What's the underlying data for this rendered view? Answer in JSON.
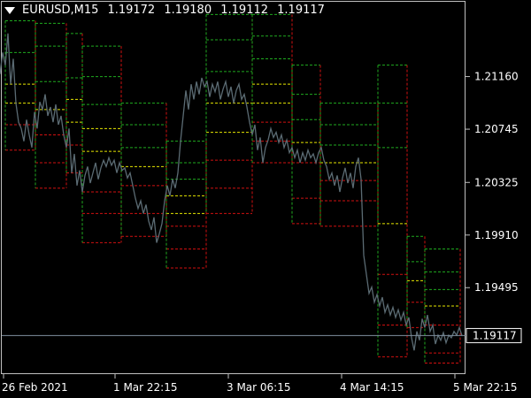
{
  "window": {
    "symbol": "EURUSD,M15",
    "ohlc": [
      "1.19172",
      "1.19180",
      "1.19112",
      "1.19117"
    ]
  },
  "colors": {
    "background": "#000000",
    "price_line": "#5b6b73",
    "current_line": "#7f8f9f",
    "upper_level": "#1faa1f",
    "mid_level": "#e6e600",
    "lower_level": "#d01010",
    "axis_text": "#ffffff",
    "frame": "#c0c0c0"
  },
  "chart_data": {
    "type": "line",
    "y_tick_labels": [
      "1.21160",
      "1.20745",
      "1.20325",
      "1.19910",
      "1.19495",
      "1.19117"
    ],
    "y_ticks": [
      1.2116,
      1.20745,
      1.20325,
      1.1991,
      1.19495
    ],
    "ylim": [
      1.1882,
      1.2175
    ],
    "current_price": 1.19117,
    "current_price_label": "1.19117",
    "x_tick_labels": [
      "26 Feb 2021",
      "1 Mar 22:15",
      "3 Mar 06:15",
      "4 Mar 14:15",
      "5 Mar 22:15"
    ],
    "price_series": [
      [
        0,
        1.2118
      ],
      [
        3,
        1.2135
      ],
      [
        6,
        1.2125
      ],
      [
        9,
        1.215
      ],
      [
        12,
        1.211
      ],
      [
        15,
        1.213
      ],
      [
        18,
        1.2095
      ],
      [
        21,
        1.208
      ],
      [
        24,
        1.2075
      ],
      [
        27,
        1.2065
      ],
      [
        30,
        1.2082
      ],
      [
        33,
        1.207
      ],
      [
        36,
        1.206
      ],
      [
        39,
        1.2088
      ],
      [
        42,
        1.2075
      ],
      [
        45,
        1.2096
      ],
      [
        48,
        1.209
      ],
      [
        51,
        1.2102
      ],
      [
        54,
        1.2085
      ],
      [
        57,
        1.2092
      ],
      [
        60,
        1.208
      ],
      [
        63,
        1.2094
      ],
      [
        66,
        1.2078
      ],
      [
        69,
        1.2085
      ],
      [
        72,
        1.207
      ],
      [
        75,
        1.206
      ],
      [
        78,
        1.2075
      ],
      [
        81,
        1.204
      ],
      [
        84,
        1.2055
      ],
      [
        87,
        1.203
      ],
      [
        90,
        1.2042
      ],
      [
        93,
        1.2025
      ],
      [
        96,
        1.2038
      ],
      [
        99,
        1.2045
      ],
      [
        102,
        1.2032
      ],
      [
        105,
        1.204
      ],
      [
        108,
        1.2048
      ],
      [
        111,
        1.2035
      ],
      [
        114,
        1.2044
      ],
      [
        117,
        1.205
      ],
      [
        120,
        1.2045
      ],
      [
        123,
        1.2052
      ],
      [
        126,
        1.2046
      ],
      [
        129,
        1.205
      ],
      [
        132,
        1.204
      ],
      [
        135,
        1.2048
      ],
      [
        138,
        1.2042
      ],
      [
        141,
        1.2044
      ],
      [
        144,
        1.2036
      ],
      [
        147,
        1.204
      ],
      [
        150,
        1.203
      ],
      [
        153,
        1.202
      ],
      [
        156,
        1.2012
      ],
      [
        159,
        1.2018
      ],
      [
        162,
        1.2008
      ],
      [
        165,
        1.2015
      ],
      [
        168,
        1.2002
      ],
      [
        171,
        1.1995
      ],
      [
        174,
        1.2005
      ],
      [
        177,
        1.1985
      ],
      [
        180,
        1.1992
      ],
      [
        183,
        1.2
      ],
      [
        186,
        1.2018
      ],
      [
        189,
        1.203
      ],
      [
        192,
        1.2022
      ],
      [
        195,
        1.2035
      ],
      [
        198,
        1.2028
      ],
      [
        201,
        1.204
      ],
      [
        204,
        1.2065
      ],
      [
        207,
        1.2085
      ],
      [
        210,
        1.2105
      ],
      [
        213,
        1.209
      ],
      [
        216,
        1.211
      ],
      [
        219,
        1.2098
      ],
      [
        222,
        1.2112
      ],
      [
        225,
        1.2102
      ],
      [
        228,
        1.2115
      ],
      [
        231,
        1.2108
      ],
      [
        234,
        1.2112
      ],
      [
        237,
        1.21
      ],
      [
        240,
        1.211
      ],
      [
        243,
        1.2104
      ],
      [
        246,
        1.2112
      ],
      [
        249,
        1.2098
      ],
      [
        252,
        1.2106
      ],
      [
        255,
        1.2112
      ],
      [
        258,
        1.21
      ],
      [
        261,
        1.2108
      ],
      [
        264,
        1.2095
      ],
      [
        267,
        1.2105
      ],
      [
        270,
        1.211
      ],
      [
        273,
        1.2098
      ],
      [
        276,
        1.2102
      ],
      [
        279,
        1.2092
      ],
      [
        282,
        1.208
      ],
      [
        285,
        1.207
      ],
      [
        288,
        1.2078
      ],
      [
        291,
        1.2058
      ],
      [
        294,
        1.2068
      ],
      [
        297,
        1.2048
      ],
      [
        300,
        1.206
      ],
      [
        303,
        1.2066
      ],
      [
        306,
        1.2075
      ],
      [
        309,
        1.2068
      ],
      [
        312,
        1.2072
      ],
      [
        315,
        1.2064
      ],
      [
        318,
        1.207
      ],
      [
        321,
        1.206
      ],
      [
        324,
        1.2066
      ],
      [
        327,
        1.2056
      ],
      [
        330,
        1.206
      ],
      [
        333,
        1.2052
      ],
      [
        336,
        1.2058
      ],
      [
        339,
        1.2048
      ],
      [
        342,
        1.2056
      ],
      [
        345,
        1.205
      ],
      [
        348,
        1.2058
      ],
      [
        351,
        1.2052
      ],
      [
        354,
        1.2055
      ],
      [
        357,
        1.2048
      ],
      [
        360,
        1.2056
      ],
      [
        363,
        1.206
      ],
      [
        366,
        1.205
      ],
      [
        369,
        1.2045
      ],
      [
        372,
        1.2035
      ],
      [
        375,
        1.204
      ],
      [
        378,
        1.203
      ],
      [
        381,
        1.2038
      ],
      [
        384,
        1.2025
      ],
      [
        387,
        1.2036
      ],
      [
        390,
        1.2044
      ],
      [
        393,
        1.2032
      ],
      [
        396,
        1.204
      ],
      [
        399,
        1.2028
      ],
      [
        402,
        1.2045
      ],
      [
        405,
        1.2052
      ],
      [
        408,
        1.2035
      ],
      [
        411,
        1.1975
      ],
      [
        414,
        1.196
      ],
      [
        417,
        1.1945
      ],
      [
        420,
        1.195
      ],
      [
        423,
        1.1938
      ],
      [
        426,
        1.1944
      ],
      [
        429,
        1.1935
      ],
      [
        432,
        1.1942
      ],
      [
        435,
        1.193
      ],
      [
        438,
        1.1936
      ],
      [
        441,
        1.1928
      ],
      [
        444,
        1.1934
      ],
      [
        447,
        1.1926
      ],
      [
        450,
        1.1932
      ],
      [
        453,
        1.1924
      ],
      [
        456,
        1.193
      ],
      [
        459,
        1.192
      ],
      [
        462,
        1.1926
      ],
      [
        465,
        1.191
      ],
      [
        468,
        1.19
      ],
      [
        471,
        1.1915
      ],
      [
        474,
        1.1908
      ],
      [
        477,
        1.1925
      ],
      [
        480,
        1.1918
      ],
      [
        483,
        1.1928
      ],
      [
        486,
        1.1915
      ],
      [
        489,
        1.192
      ],
      [
        492,
        1.1905
      ],
      [
        495,
        1.1912
      ],
      [
        498,
        1.1908
      ],
      [
        501,
        1.1914
      ],
      [
        504,
        1.1906
      ],
      [
        507,
        1.1912
      ],
      [
        510,
        1.191
      ],
      [
        513,
        1.1915
      ],
      [
        516,
        1.1912
      ],
      [
        519,
        1.1918
      ],
      [
        522,
        1.19117
      ]
    ],
    "level_segments": [
      {
        "x0": 6,
        "x1": 40,
        "levels": [
          1.216,
          1.2135,
          1.211,
          1.2095,
          1.2078,
          1.2058
        ]
      },
      {
        "x0": 40,
        "x1": 75,
        "levels": [
          1.2158,
          1.214,
          1.2112,
          1.209,
          1.207,
          1.2048,
          1.2028
        ]
      },
      {
        "x0": 75,
        "x1": 93,
        "levels": [
          1.215,
          1.2115,
          1.2098,
          1.208,
          1.2062,
          1.204
        ]
      },
      {
        "x0": 93,
        "x1": 137,
        "levels": [
          1.214,
          1.2116,
          1.2094,
          1.2075,
          1.2057,
          1.2025,
          1.2008,
          1.1985
        ]
      },
      {
        "x0": 137,
        "x1": 188,
        "levels": [
          1.2095,
          1.2078,
          1.206,
          1.2045,
          1.203,
          1.2008,
          1.199
        ]
      },
      {
        "x0": 188,
        "x1": 233,
        "levels": [
          1.2065,
          1.2048,
          1.2035,
          1.2022,
          1.2008,
          1.1998,
          1.198,
          1.1965
        ]
      },
      {
        "x0": 233,
        "x1": 285,
        "levels": [
          1.2165,
          1.2145,
          1.212,
          1.2095,
          1.2072,
          1.205,
          1.2028,
          1.2008
        ]
      },
      {
        "x0": 285,
        "x1": 330,
        "levels": [
          1.2165,
          1.2148,
          1.213,
          1.211,
          1.2095,
          1.208,
          1.2065,
          1.2048
        ]
      },
      {
        "x0": 330,
        "x1": 362,
        "levels": [
          1.2125,
          1.2102,
          1.2082,
          1.2064,
          1.2048,
          1.202,
          1.2
        ]
      },
      {
        "x0": 362,
        "x1": 427,
        "levels": [
          1.2095,
          1.2078,
          1.2062,
          1.2048,
          1.2034,
          1.2018,
          1.1998
        ]
      },
      {
        "x0": 427,
        "x1": 460,
        "levels": [
          1.2125,
          1.2095,
          1.206,
          1.2,
          1.196,
          1.192,
          1.1895
        ]
      },
      {
        "x0": 460,
        "x1": 480,
        "levels": [
          1.199,
          1.197,
          1.1955,
          1.1938,
          1.1918
        ]
      },
      {
        "x0": 480,
        "x1": 520,
        "levels": [
          1.198,
          1.1962,
          1.1948,
          1.1935,
          1.192,
          1.1898,
          1.189
        ]
      }
    ]
  }
}
